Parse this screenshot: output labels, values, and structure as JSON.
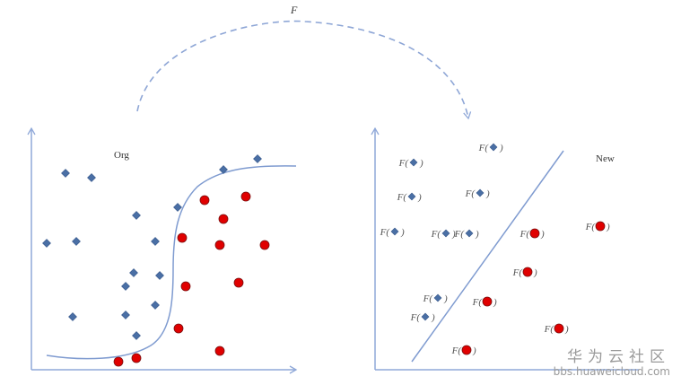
{
  "transform_label": "F",
  "left_panel": {
    "title": "Org"
  },
  "right_panel": {
    "title": "New",
    "mapped_prefix": "F(",
    "mapped_suffix": ")"
  },
  "colors": {
    "axis": "#8fa8d8",
    "curve": "#7f9bd0",
    "diamond": "#4a6fa5",
    "circle": "#e00000",
    "arrow": "#8ea6d6"
  },
  "classes": {
    "diamond": "blue-diamond-icon",
    "circle": "red-circle-icon"
  },
  "watermark": {
    "name": "华为云社区",
    "url": "bbs.huaweicloud.com"
  }
}
